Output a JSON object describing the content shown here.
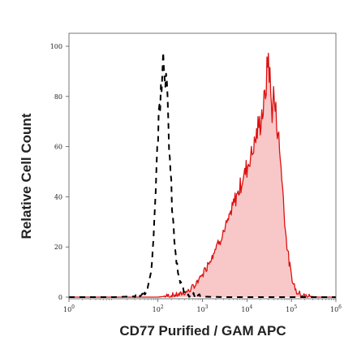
{
  "chart_data": {
    "type": "area",
    "title": "",
    "xlabel": "CD77 Purified / GAM APC",
    "ylabel": "Relative Cell Count",
    "x_scale": "log",
    "xlim": [
      1,
      1000000
    ],
    "ylim": [
      0,
      100
    ],
    "grid": false,
    "y_ticks": [
      0,
      20,
      40,
      60,
      80,
      100
    ],
    "x_ticks": [
      {
        "value": 1,
        "base": "10",
        "exp": "0"
      },
      {
        "value": 100,
        "base": "10",
        "exp": "2"
      },
      {
        "value": 1000,
        "base": "10",
        "exp": "3"
      },
      {
        "value": 10000,
        "base": "10",
        "exp": "4"
      },
      {
        "value": 100000,
        "base": "10",
        "exp": "5"
      },
      {
        "value": 1000000,
        "base": "10",
        "exp": "6"
      }
    ],
    "series": [
      {
        "style": "dashed",
        "color": "#000000",
        "fill": "none",
        "x": [
          1,
          10,
          30,
          50,
          60,
          70,
          80,
          90,
          100,
          115,
          130,
          145,
          160,
          175,
          190,
          210,
          240,
          270,
          300,
          350,
          400,
          500,
          700,
          1000,
          3000,
          10000,
          100000,
          1000000
        ],
        "y": [
          0,
          0,
          0.3,
          1,
          4,
          10,
          25,
          45,
          65,
          85,
          97,
          92,
          80,
          65,
          50,
          35,
          20,
          12,
          7,
          4,
          2,
          1,
          0.5,
          0.2,
          0,
          0,
          0,
          0
        ]
      },
      {
        "style": "solid",
        "color": "#dd1111",
        "fill": "#f8c8c8",
        "x": [
          1,
          100,
          300,
          500,
          700,
          1000,
          1500,
          2000,
          3000,
          4000,
          5000,
          7000,
          10000,
          13000,
          16000,
          20000,
          25000,
          28000,
          30000,
          33000,
          36000,
          40000,
          45000,
          50000,
          60000,
          70000,
          80000,
          100000,
          130000,
          200000,
          400000,
          1000000
        ],
        "y": [
          0,
          0,
          1,
          2.5,
          5,
          9,
          15,
          20,
          26,
          31,
          37,
          44,
          52,
          58,
          64,
          70,
          78,
          88,
          98,
          86,
          74,
          80,
          73,
          66,
          50,
          32,
          20,
          8,
          2,
          0.5,
          0,
          0
        ]
      }
    ]
  }
}
